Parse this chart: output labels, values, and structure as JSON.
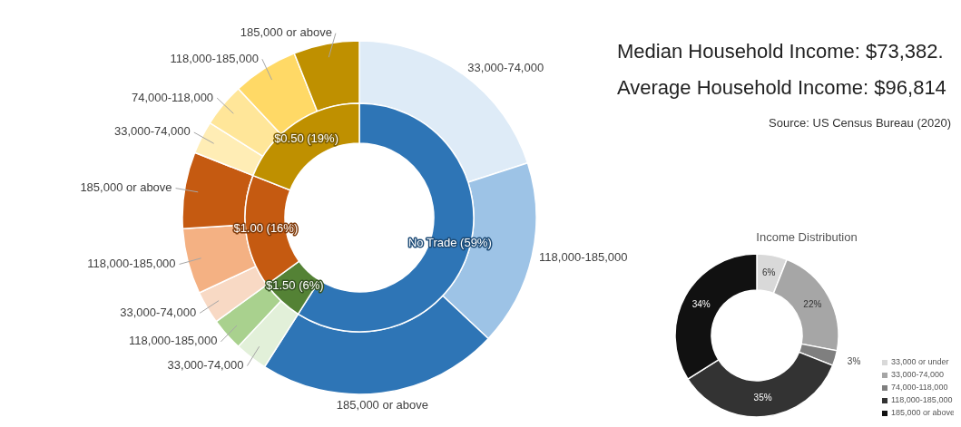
{
  "chart_data": [
    {
      "type": "donut",
      "categories": [
        "No Trade (59%)",
        "$1.50 (6%)",
        "$1.00 (16%)",
        "$0.50 (19%)"
      ],
      "values": [
        59,
        6,
        16,
        19
      ],
      "colors": [
        "#2e75b6",
        "#548235",
        "#c55a11",
        "#bf9000"
      ]
    },
    {
      "type": "donut",
      "categories": [
        "33,000-74,000",
        "118,000-185,000",
        "185,000 or above",
        "33,000-74,000",
        "118,000-185,000",
        "33,000-74,000",
        "118,000-185,000",
        "185,000 or above",
        "33,000-74,000",
        "74,000-118,000",
        "118,000-185,000",
        "185,000 or above"
      ],
      "values": [
        20,
        17,
        22,
        3,
        3,
        3,
        6,
        7,
        3,
        4,
        6,
        6
      ],
      "colors": [
        "#deebf7",
        "#9dc3e6",
        "#2e75b6",
        "#e2f0d9",
        "#a9d18e",
        "#f8d9c4",
        "#f4b183",
        "#c55a11",
        "#ffedb5",
        "#ffe699",
        "#ffd966",
        "#bf9000"
      ]
    },
    {
      "type": "donut",
      "title": "Income Distribution",
      "categories": [
        "33,000 or under",
        "33,000-74,000",
        "74,000-118,000",
        "118,000-185,000",
        "185,000 or above"
      ],
      "values": [
        6,
        22,
        3,
        35,
        34
      ],
      "value_labels": [
        "6%",
        "22%",
        "3%",
        "35%",
        "34%"
      ],
      "colors": [
        "#d9d9d9",
        "#a6a6a6",
        "#7f7f7f",
        "#333333",
        "#111111"
      ],
      "legend": "right"
    },
    {
      "type": "other",
      "title": "Median Household Income: $73,382.",
      "annotations": [
        "Average Household Income: $96,814",
        "Source: US Census Bureau (2020)"
      ]
    }
  ]
}
